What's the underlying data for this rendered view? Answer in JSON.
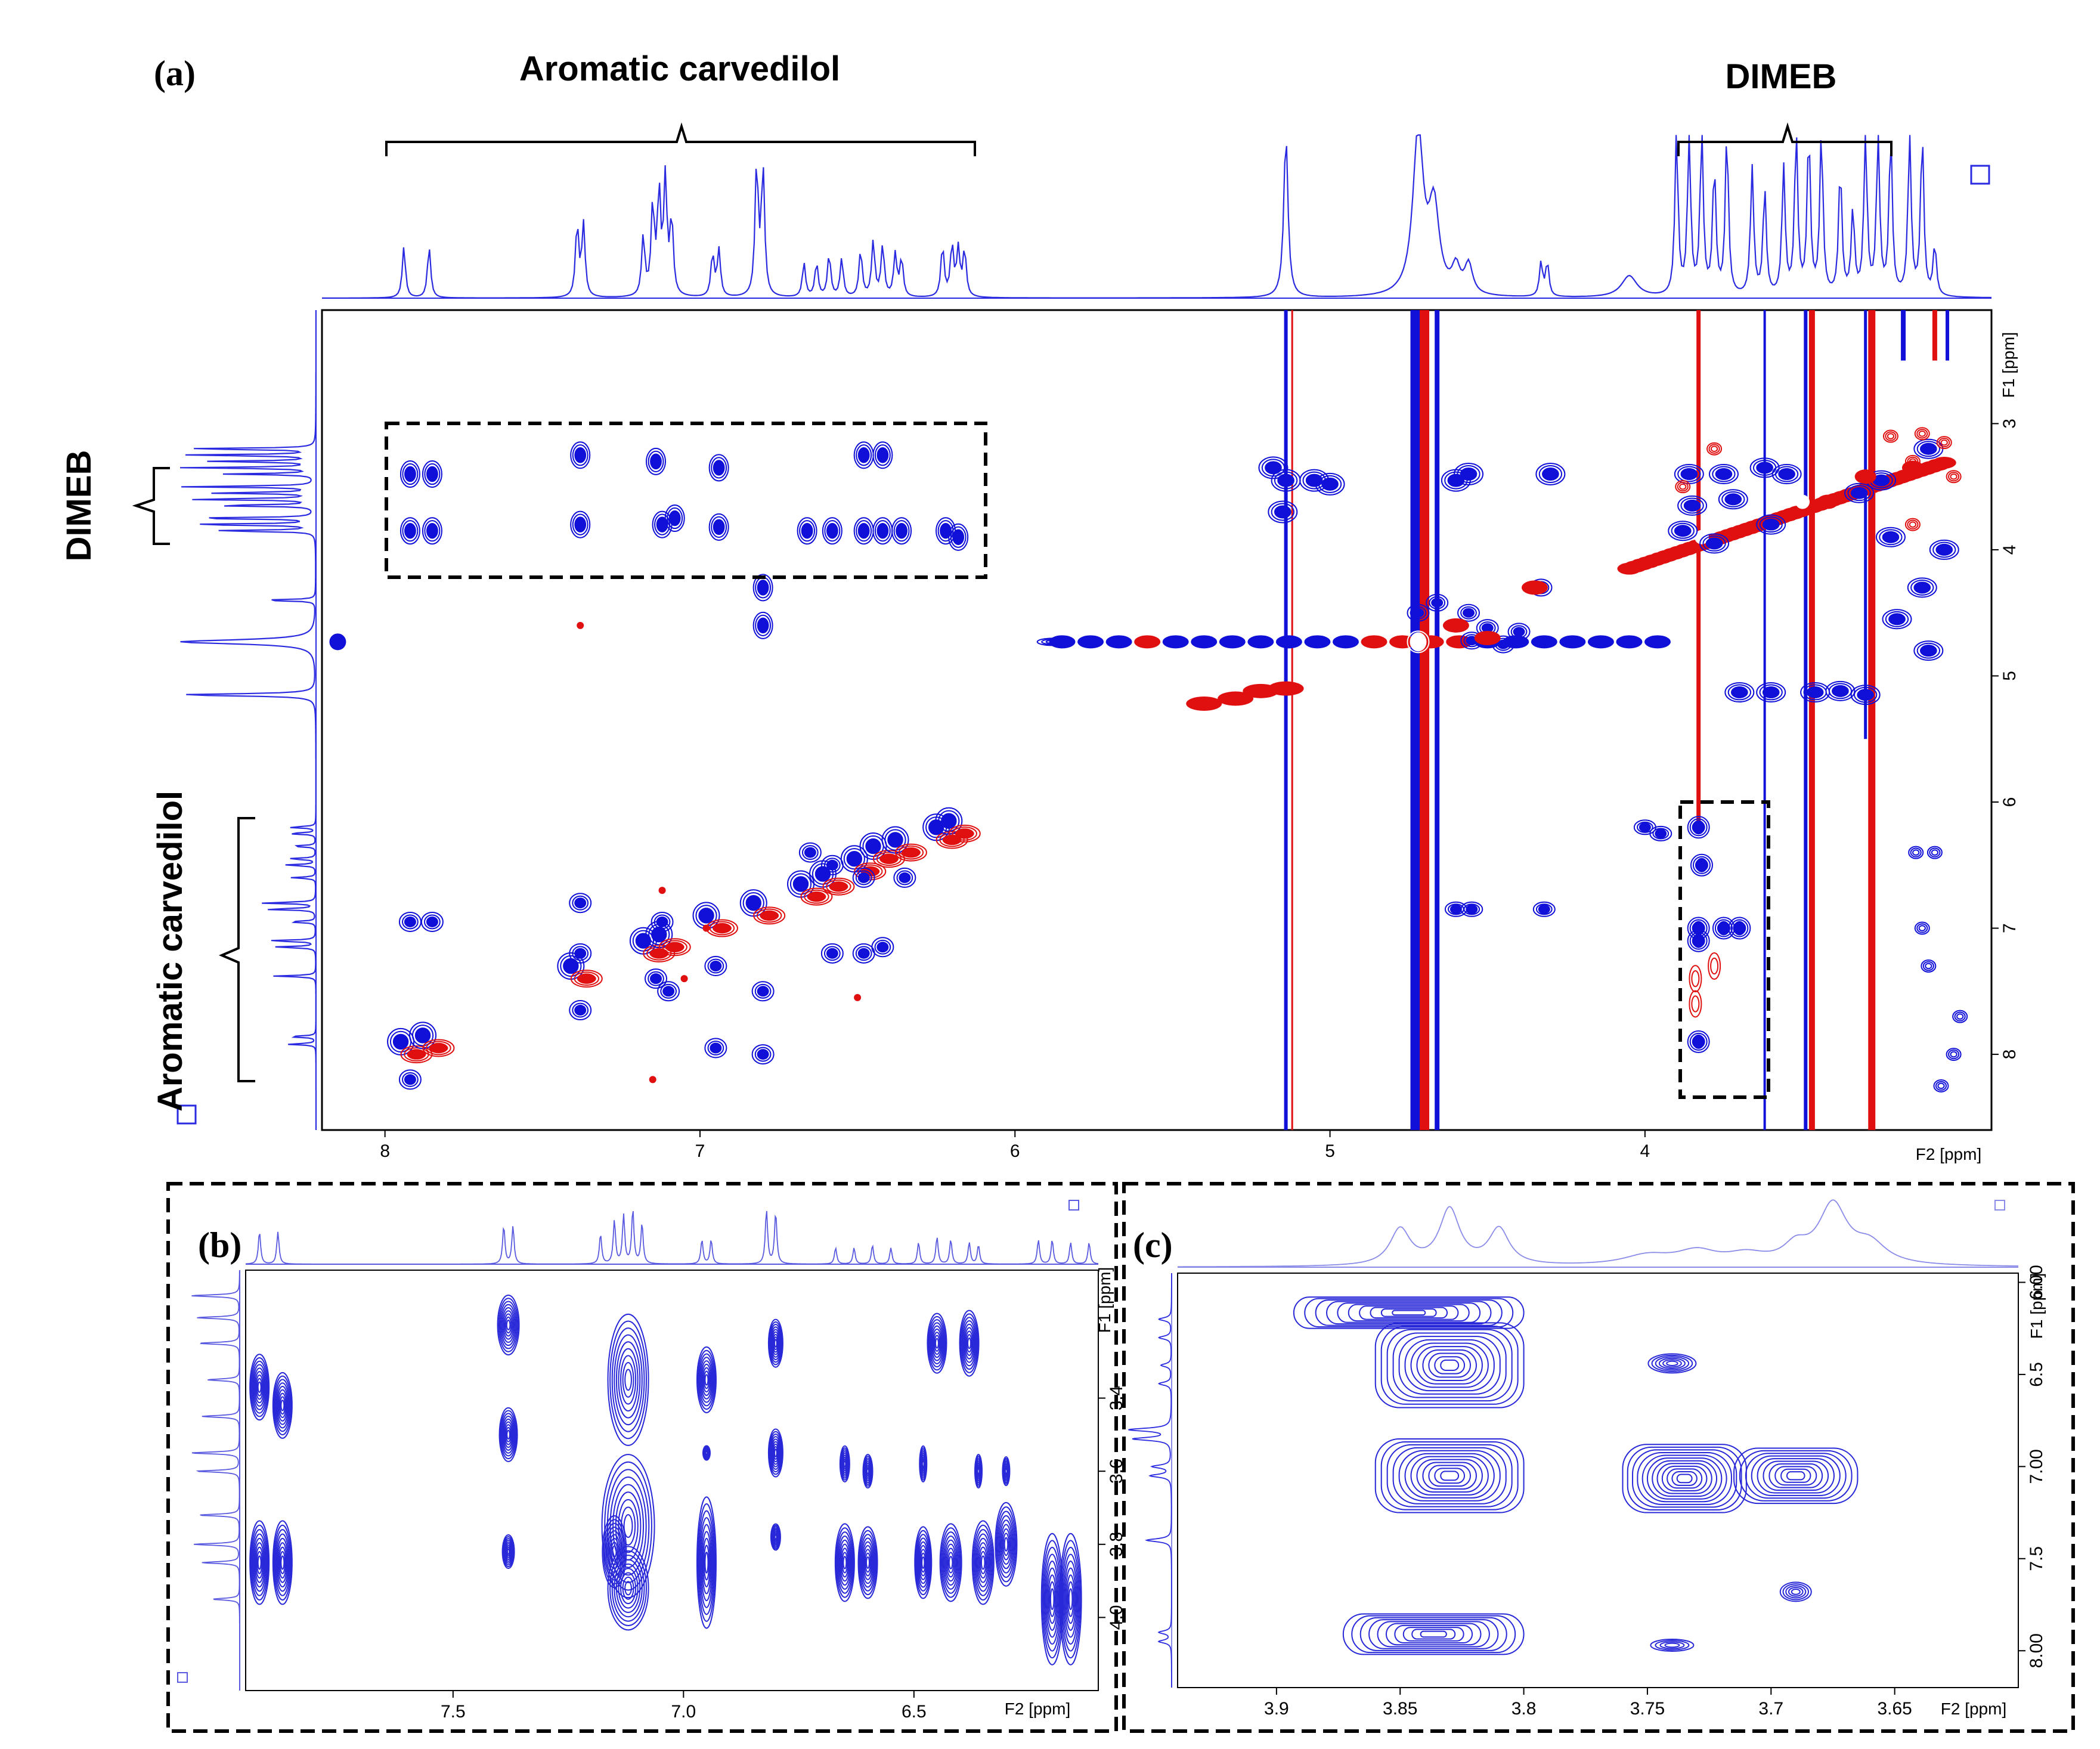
{
  "chart_data": [
    {
      "panel": "(a)",
      "type": "heatmap",
      "description_labels": {
        "top_groups": [
          "Aromatic carvedilol",
          "DIMEB"
        ],
        "left_groups": [
          "DIMEB",
          "Aromatic carvedilol"
        ]
      },
      "xlabel": "F2 [ppm]",
      "ylabel": "F1 [ppm]",
      "xlim": [
        8.2,
        2.9
      ],
      "ylim": [
        2.1,
        8.6
      ],
      "xticks": [
        8,
        7,
        6,
        5,
        4
      ],
      "yticks": [
        3,
        4,
        5,
        6,
        7,
        8
      ],
      "series": [
        {
          "name": "positive",
          "color": "#1010d8"
        },
        {
          "name": "negative",
          "color": "#e01010"
        }
      ]
    },
    {
      "panel": "(b)",
      "type": "heatmap",
      "xlabel": "F2 [ppm]",
      "ylabel": "F1 [ppm]",
      "xlim": [
        7.95,
        6.1
      ],
      "ylim": [
        3.05,
        4.2
      ],
      "xticks": [
        7.5,
        7.0,
        6.5
      ],
      "yticks": [
        3.4,
        3.6,
        3.8,
        4.0
      ],
      "series": [
        {
          "name": "positive",
          "color": "#2828d8"
        }
      ]
    },
    {
      "panel": "(c)",
      "type": "heatmap",
      "xlabel": "F2 [ppm]",
      "ylabel": "F1 [ppm]",
      "xlim": [
        3.94,
        3.6
      ],
      "ylim": [
        5.95,
        8.2
      ],
      "xticks": [
        3.9,
        3.85,
        3.8,
        3.75,
        3.7,
        3.65
      ],
      "yticks": [
        6.0,
        6.5,
        7.0,
        7.5,
        8.0
      ],
      "series": [
        {
          "name": "positive",
          "color": "#2828d8"
        }
      ]
    }
  ],
  "labels": {
    "a": "(a)",
    "b": "(b)",
    "c": "(c)",
    "aromatic": "Aromatic carvedilol",
    "dimeb": "DIMEB",
    "f1": "F1 [ppm]",
    "f2": "F2 [ppm]"
  }
}
